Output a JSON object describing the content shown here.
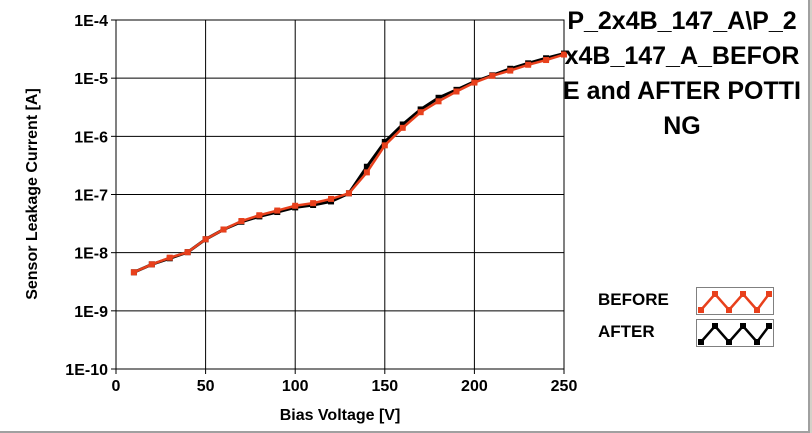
{
  "chart_data": {
    "type": "line",
    "title": "P_2x4B_147_A\\P_2x4B_147_A_BEFORE and AFTER POTTING",
    "xlabel": "Bias Voltage [V]",
    "ylabel": "Sensor Leakage Current [A]",
    "xlim": [
      0,
      250
    ],
    "ylim": [
      1e-10,
      0.0001
    ],
    "yscale": "log",
    "grid": true,
    "legend_position": "bottom-right",
    "x_ticks": [
      0,
      50,
      100,
      150,
      200,
      250
    ],
    "x_tick_labels": [
      "0",
      "50",
      "100",
      "150",
      "200",
      "250"
    ],
    "y_ticks": [
      1e-10,
      1e-09,
      1e-08,
      1e-07,
      1e-06,
      1e-05,
      0.0001
    ],
    "y_tick_labels": [
      "1E-10",
      "1E-9",
      "1E-8",
      "1E-7",
      "1E-6",
      "1E-5",
      "1E-4"
    ],
    "x": [
      10,
      20,
      30,
      40,
      50,
      60,
      70,
      80,
      90,
      100,
      110,
      120,
      130,
      140,
      150,
      160,
      170,
      180,
      190,
      200,
      210,
      220,
      230,
      240,
      250
    ],
    "series": [
      {
        "name": "AFTER",
        "color": "#000000",
        "values": [
          4.6e-09,
          6.3e-09,
          8e-09,
          1.02e-08,
          1.7e-08,
          2.5e-08,
          3.4e-08,
          4.2e-08,
          5e-08,
          6e-08,
          6.6e-08,
          7.6e-08,
          1.05e-07,
          3e-07,
          8e-07,
          1.6e-06,
          2.9e-06,
          4.6e-06,
          6.3e-06,
          8.7e-06,
          1.12e-05,
          1.45e-05,
          1.8e-05,
          2.2e-05,
          2.65e-05
        ]
      },
      {
        "name": "BEFORE",
        "color": "#e8401c",
        "values": [
          4.6e-09,
          6.3e-09,
          8.2e-09,
          1.02e-08,
          1.7e-08,
          2.5e-08,
          3.5e-08,
          4.4e-08,
          5.3e-08,
          6.4e-08,
          7.1e-08,
          8.4e-08,
          1.05e-07,
          2.4e-07,
          7e-07,
          1.4e-06,
          2.6e-06,
          4e-06,
          5.9e-06,
          8.4e-06,
          1.1e-05,
          1.35e-05,
          1.7e-05,
          2.05e-05,
          2.55e-05
        ]
      }
    ]
  },
  "legend": {
    "items": [
      {
        "label": "BEFORE",
        "color": "#e8401c"
      },
      {
        "label": "AFTER",
        "color": "#000000"
      }
    ]
  }
}
